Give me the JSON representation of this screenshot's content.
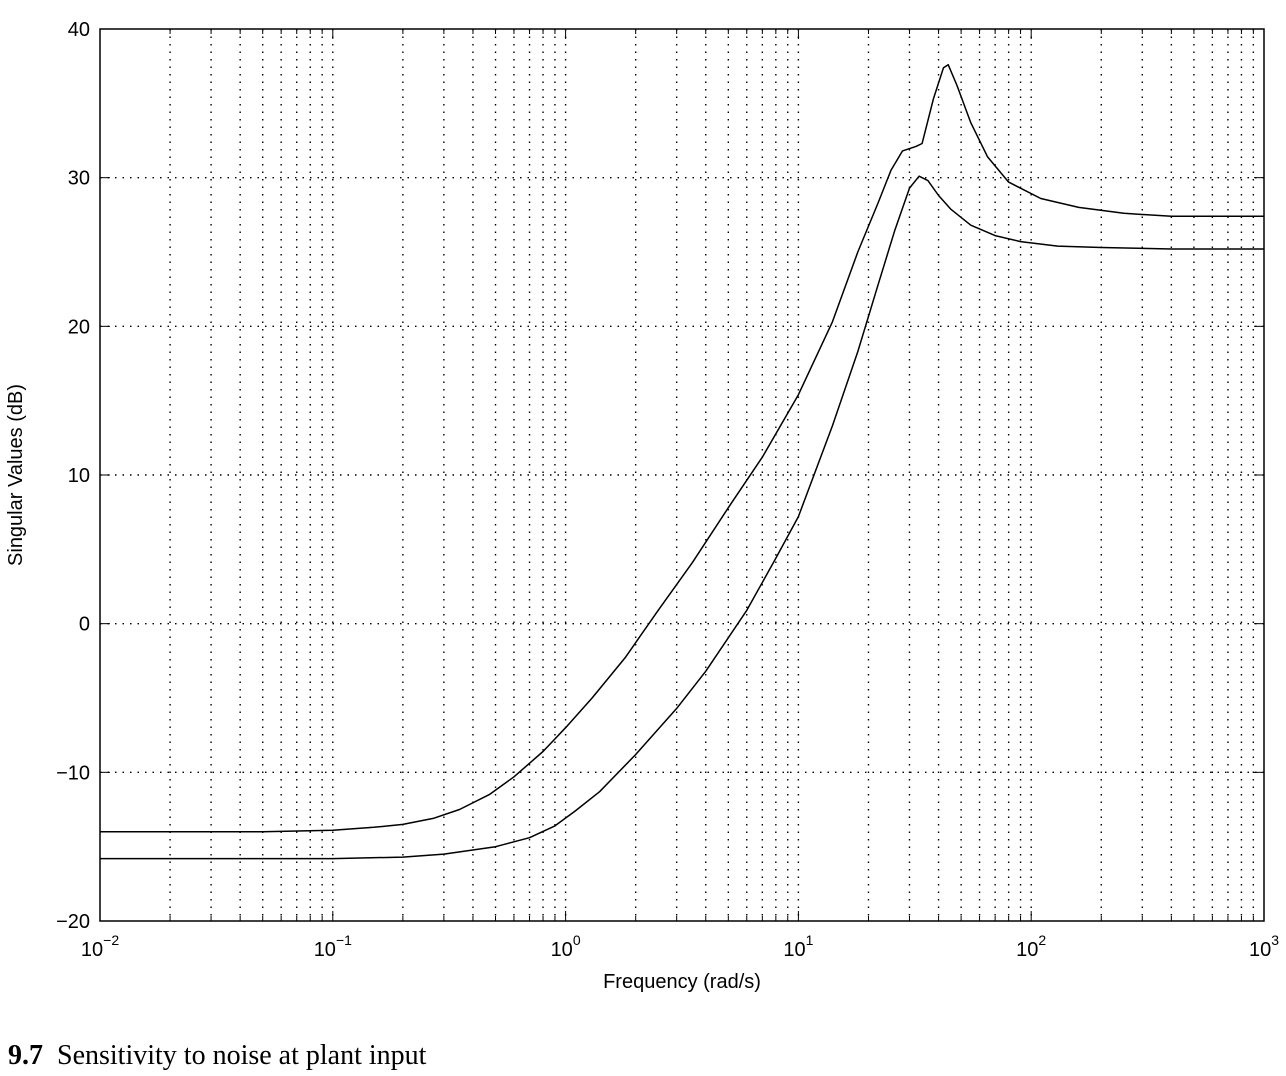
{
  "chart_data": {
    "type": "line",
    "title": "",
    "xlabel": "Frequency (rad/s)",
    "ylabel": "Singular Values (dB)",
    "xscale": "log",
    "xlim": [
      0.01,
      1000
    ],
    "ylim": [
      -20,
      40
    ],
    "grid": true,
    "x_ticks": [
      0.01,
      0.1,
      1,
      10,
      100,
      1000
    ],
    "x_tick_labels": [
      {
        "base": "10",
        "exp": "−2"
      },
      {
        "base": "10",
        "exp": "−1"
      },
      {
        "base": "10",
        "exp": "0"
      },
      {
        "base": "10",
        "exp": "1"
      },
      {
        "base": "10",
        "exp": "2"
      },
      {
        "base": "10",
        "exp": "3"
      }
    ],
    "y_ticks": [
      -20,
      -10,
      0,
      10,
      20,
      30,
      40
    ],
    "y_tick_labels": [
      "−20",
      "−10",
      "0",
      "10",
      "20",
      "30",
      "40"
    ],
    "series": [
      {
        "x": [
          0.01,
          0.03,
          0.05,
          0.1,
          0.15,
          0.2,
          0.27,
          0.35,
          0.47,
          0.6,
          0.8,
          1.0,
          1.3,
          1.8,
          2.5,
          3.5,
          5,
          7,
          10,
          14,
          18,
          22,
          25,
          28,
          32,
          34,
          38,
          42,
          44,
          48,
          55,
          65,
          80,
          110,
          160,
          250,
          400,
          1000
        ],
        "values": [
          -14.0,
          -14.0,
          -14.0,
          -13.9,
          -13.7,
          -13.5,
          -13.1,
          -12.5,
          -11.5,
          -10.3,
          -8.6,
          -7.0,
          -5.0,
          -2.3,
          0.9,
          4.1,
          7.8,
          11.2,
          15.4,
          20.3,
          25.0,
          28.3,
          30.5,
          31.8,
          32.1,
          32.3,
          35.3,
          37.4,
          37.6,
          36.2,
          33.7,
          31.4,
          29.7,
          28.6,
          28.0,
          27.6,
          27.4,
          27.4
        ]
      },
      {
        "x": [
          0.01,
          0.05,
          0.1,
          0.2,
          0.3,
          0.5,
          0.7,
          0.9,
          1.1,
          1.4,
          2,
          3,
          4,
          6,
          8,
          10,
          14,
          18,
          22,
          26,
          30,
          33,
          36,
          40,
          45,
          55,
          70,
          90,
          130,
          200,
          400,
          1000
        ],
        "values": [
          -15.8,
          -15.8,
          -15.8,
          -15.7,
          -15.5,
          -15.0,
          -14.4,
          -13.6,
          -12.6,
          -11.3,
          -8.8,
          -5.7,
          -3.2,
          0.9,
          4.4,
          7.2,
          13.3,
          18.3,
          22.8,
          26.5,
          29.3,
          30.1,
          29.8,
          28.8,
          27.9,
          26.8,
          26.1,
          25.7,
          25.4,
          25.3,
          25.2,
          25.2
        ]
      }
    ]
  },
  "caption": {
    "number": ". 9.7",
    "text": "Sensitivity to noise at plant input"
  }
}
